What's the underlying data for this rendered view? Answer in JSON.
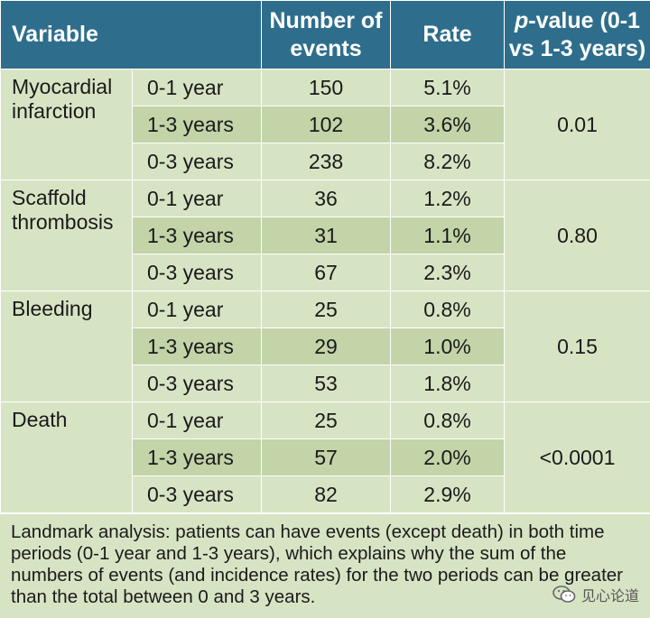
{
  "headers": {
    "variable": "Variable",
    "events": "Number of events",
    "rate": "Rate",
    "p_italic": "p",
    "p_rest": "-value (0-1 vs 1-3 years)"
  },
  "groups": [
    {
      "variable": "Myocardial infarction",
      "p_value": "0.01",
      "rows": [
        {
          "period": "0-1 year",
          "events": "150",
          "rate": "5.1%"
        },
        {
          "period": "1-3 years",
          "events": "102",
          "rate": "3.6%"
        },
        {
          "period": "0-3 years",
          "events": "238",
          "rate": "8.2%"
        }
      ]
    },
    {
      "variable": "Scaffold thrombosis",
      "p_value": "0.80",
      "rows": [
        {
          "period": "0-1 year",
          "events": "36",
          "rate": "1.2%"
        },
        {
          "period": "1-3 years",
          "events": "31",
          "rate": "1.1%"
        },
        {
          "period": "0-3 years",
          "events": "67",
          "rate": "2.3%"
        }
      ]
    },
    {
      "variable": "Bleeding",
      "p_value": "0.15",
      "rows": [
        {
          "period": "0-1 year",
          "events": "25",
          "rate": "0.8%"
        },
        {
          "period": "1-3 years",
          "events": "29",
          "rate": "1.0%"
        },
        {
          "period": "0-3 years",
          "events": "53",
          "rate": "1.8%"
        }
      ]
    },
    {
      "variable": "Death",
      "p_value": "<0.0001",
      "rows": [
        {
          "period": "0-1 year",
          "events": "25",
          "rate": "0.8%"
        },
        {
          "period": "1-3 years",
          "events": "57",
          "rate": "2.0%"
        },
        {
          "period": "0-3 years",
          "events": "82",
          "rate": "2.9%"
        }
      ]
    }
  ],
  "footnote": "Landmark analysis: patients can have events (except death) in both time periods (0-1 year and 1-3 years), which explains why the sum of the numbers of events (and incidence rates) for the two periods can be greater than the total between 0 and 3 years.",
  "watermark": {
    "text": "见心论道",
    "icon": "wechat-icon"
  }
}
